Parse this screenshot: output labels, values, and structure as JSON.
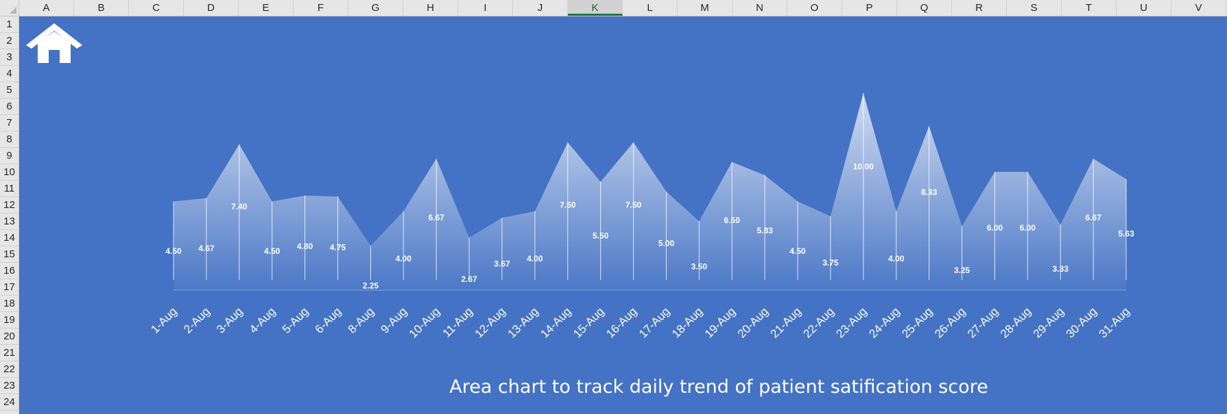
{
  "spreadsheet": {
    "columns": [
      "A",
      "B",
      "C",
      "D",
      "E",
      "F",
      "G",
      "H",
      "I",
      "J",
      "K",
      "L",
      "M",
      "N",
      "O",
      "P",
      "Q",
      "R",
      "S",
      "T",
      "U",
      "V"
    ],
    "active_column": "K",
    "rows": [
      "1",
      "2",
      "3",
      "4",
      "5",
      "6",
      "7",
      "8",
      "9",
      "10",
      "11",
      "12",
      "13",
      "14",
      "15",
      "16",
      "17",
      "18",
      "19",
      "20",
      "21",
      "22",
      "23",
      "24"
    ]
  },
  "home_icon": "home-icon",
  "colors": {
    "sheet_background": "#4472c4",
    "area_fill": "#ffffff",
    "header_background": "#e6e6e6",
    "active_column_accent": "#217346"
  },
  "chart_data": {
    "type": "area",
    "title": "Area chart to track daily trend of patient satification score",
    "categories": [
      "1-Aug",
      "2-Aug",
      "3-Aug",
      "4-Aug",
      "5-Aug",
      "6-Aug",
      "8-Aug",
      "9-Aug",
      "10-Aug",
      "11-Aug",
      "12-Aug",
      "13-Aug",
      "14-Aug",
      "15-Aug",
      "16-Aug",
      "17-Aug",
      "18-Aug",
      "19-Aug",
      "20-Aug",
      "21-Aug",
      "22-Aug",
      "23-Aug",
      "24-Aug",
      "25-Aug",
      "26-Aug",
      "27-Aug",
      "28-Aug",
      "29-Aug",
      "30-Aug",
      "31-Aug"
    ],
    "values": [
      4.5,
      4.67,
      7.4,
      4.5,
      4.8,
      4.75,
      2.25,
      4.0,
      6.67,
      2.67,
      3.67,
      4.0,
      7.5,
      5.5,
      7.5,
      5.0,
      3.5,
      6.5,
      5.83,
      4.5,
      3.75,
      10.0,
      4.0,
      8.33,
      3.25,
      6.0,
      6.0,
      3.33,
      6.67,
      5.63
    ],
    "data_labels": [
      "4.50",
      "4.67",
      "7.40",
      "4.50",
      "4.80",
      "4.75",
      "2.25",
      "4.00",
      "6.67",
      "2.67",
      "3.67",
      "4.00",
      "7.50",
      "5.50",
      "7.50",
      "5.00",
      "3.50",
      "6.50",
      "5.83",
      "4.50",
      "3.75",
      "10.00",
      "4.00",
      "8.33",
      "3.25",
      "6.00",
      "6.00",
      "3.33",
      "6.67",
      "5.63"
    ],
    "ylim": [
      0,
      10
    ],
    "xlabel": "",
    "ylabel": "",
    "grid": false,
    "legend": "none"
  }
}
